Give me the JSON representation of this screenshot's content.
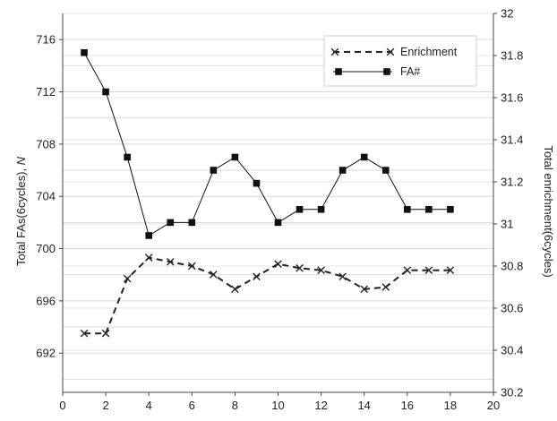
{
  "chart_data": {
    "type": "line",
    "x": [
      1,
      2,
      3,
      4,
      5,
      6,
      7,
      8,
      9,
      10,
      11,
      12,
      13,
      14,
      15,
      16,
      17,
      18
    ],
    "xlim": [
      0,
      20
    ],
    "xticks": [
      "0",
      "2",
      "4",
      "6",
      "8",
      "10",
      "12",
      "14",
      "16",
      "18",
      "20"
    ],
    "y_left": {
      "label_main": "Total FAs(6cycles), ",
      "label_italic": "N",
      "lim": [
        689,
        718
      ],
      "ticks": [
        "692",
        "696",
        "700",
        "704",
        "708",
        "712",
        "716"
      ],
      "tick_values": [
        692,
        696,
        700,
        704,
        708,
        712,
        716
      ]
    },
    "y_right": {
      "label": "Total enrichment(6cycles)",
      "lim": [
        30.2,
        32
      ],
      "ticks": [
        "30.2",
        "30.4",
        "30.6",
        "30.8",
        "31",
        "31.2",
        "31.4",
        "31.6",
        "31.8",
        "32"
      ],
      "tick_values": [
        30.2,
        30.4,
        30.6,
        30.8,
        31,
        31.2,
        31.4,
        31.6,
        31.8,
        32
      ]
    },
    "series": [
      {
        "name": "Enrichment",
        "axis": "right",
        "marker": "x",
        "line": "dashed",
        "color": "#222222",
        "values": [
          30.48,
          30.48,
          30.74,
          30.84,
          30.82,
          30.8,
          30.76,
          30.69,
          30.75,
          30.81,
          30.79,
          30.78,
          30.75,
          30.69,
          30.7,
          30.78,
          30.78,
          30.78
        ]
      },
      {
        "name": "FA#",
        "axis": "left",
        "marker": "square",
        "line": "solid",
        "color": "#111111",
        "values": [
          715,
          712,
          707,
          701,
          702,
          702,
          706,
          707,
          705,
          702,
          703,
          703,
          706,
          707,
          706,
          703,
          703,
          703
        ]
      }
    ],
    "grid": "horizontal",
    "legend_position": "top-right"
  }
}
